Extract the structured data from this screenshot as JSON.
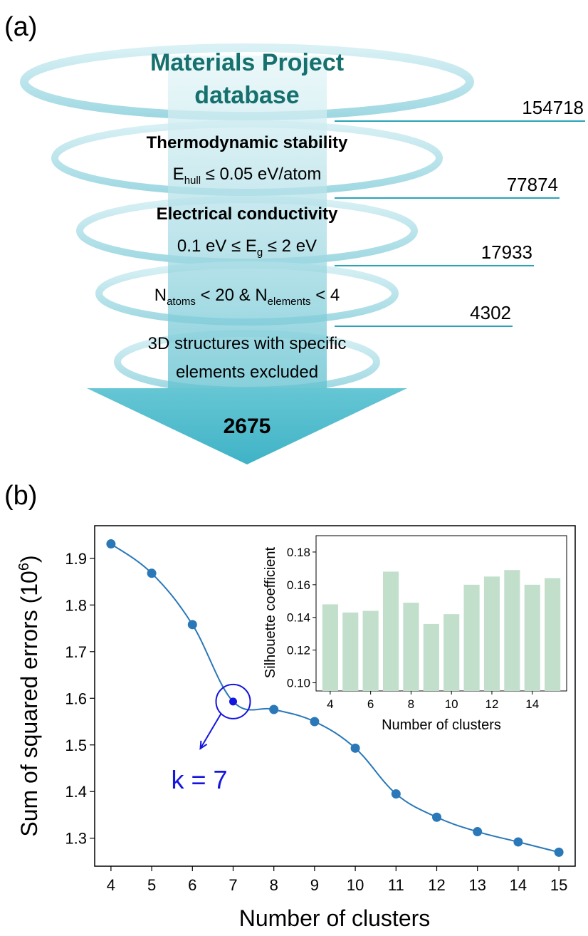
{
  "panel_a": {
    "label": "(a)",
    "title_line1": "Materials Project",
    "title_line2": "database",
    "filters": [
      {
        "line1": "Thermodynamic stability",
        "line2_main": "E",
        "line2_sub": "hull",
        "line2_rest": " ≤ 0.05 eV/atom"
      },
      {
        "line1": "Electrical conductivity",
        "line2_pre": "0.1 eV ≤ E",
        "line2_sub": "g",
        "line2_rest": " ≤ 2 eV"
      },
      {
        "main1": "N",
        "sub1": "atoms",
        "mid": " < 20 & N",
        "sub2": "elements",
        "end": " < 4"
      },
      {
        "line1": "3D structures with specific",
        "line2": "elements excluded"
      }
    ],
    "counts": [
      "154718",
      "77874",
      "17933",
      "4302"
    ],
    "final_count": "2675"
  },
  "panel_b": {
    "label": "(b)",
    "xlabel": "Number of clusters",
    "ylabel": "Sum of squared errors (10",
    "ylabel_sup": "6",
    "ylabel_end": ")",
    "annotation": "k = 7"
  },
  "chart_data": [
    {
      "type": "line",
      "x": [
        4,
        5,
        6,
        7,
        8,
        9,
        10,
        11,
        12,
        13,
        14,
        15
      ],
      "series": [
        {
          "values": [
            1.931,
            1.868,
            1.758,
            1.593,
            1.576,
            1.55,
            1.493,
            1.395,
            1.345,
            1.314,
            1.292,
            1.27
          ]
        }
      ],
      "xlabel": "Number of clusters",
      "ylabel": "Sum of squared errors (10^6)",
      "xlim": [
        3.6,
        15.4
      ],
      "ylim": [
        1.24,
        1.97
      ],
      "xticks": [
        "4",
        "5",
        "6",
        "7",
        "8",
        "9",
        "10",
        "11",
        "12",
        "13",
        "14",
        "15"
      ],
      "yticks": [
        "1.3",
        "1.4",
        "1.5",
        "1.6",
        "1.7",
        "1.8",
        "1.9"
      ],
      "highlight": {
        "x": 7,
        "label": "k = 7"
      },
      "color": "#2a78b8",
      "grid": false
    },
    {
      "type": "bar",
      "categories": [
        4,
        5,
        6,
        7,
        8,
        9,
        10,
        11,
        12,
        13,
        14,
        15
      ],
      "values": [
        0.148,
        0.143,
        0.144,
        0.168,
        0.149,
        0.136,
        0.142,
        0.16,
        0.165,
        0.169,
        0.16,
        0.164
      ],
      "xlabel": "Number of clusters",
      "ylabel": "Silhouette coefficient",
      "xlim": [
        3.3,
        15.7
      ],
      "ylim": [
        0.095,
        0.19
      ],
      "xticks": [
        "4",
        "6",
        "8",
        "10",
        "12",
        "14"
      ],
      "yticks": [
        "0.10",
        "0.12",
        "0.14",
        "0.16",
        "0.18"
      ],
      "color": "#c2dfcc",
      "grid": false
    }
  ]
}
